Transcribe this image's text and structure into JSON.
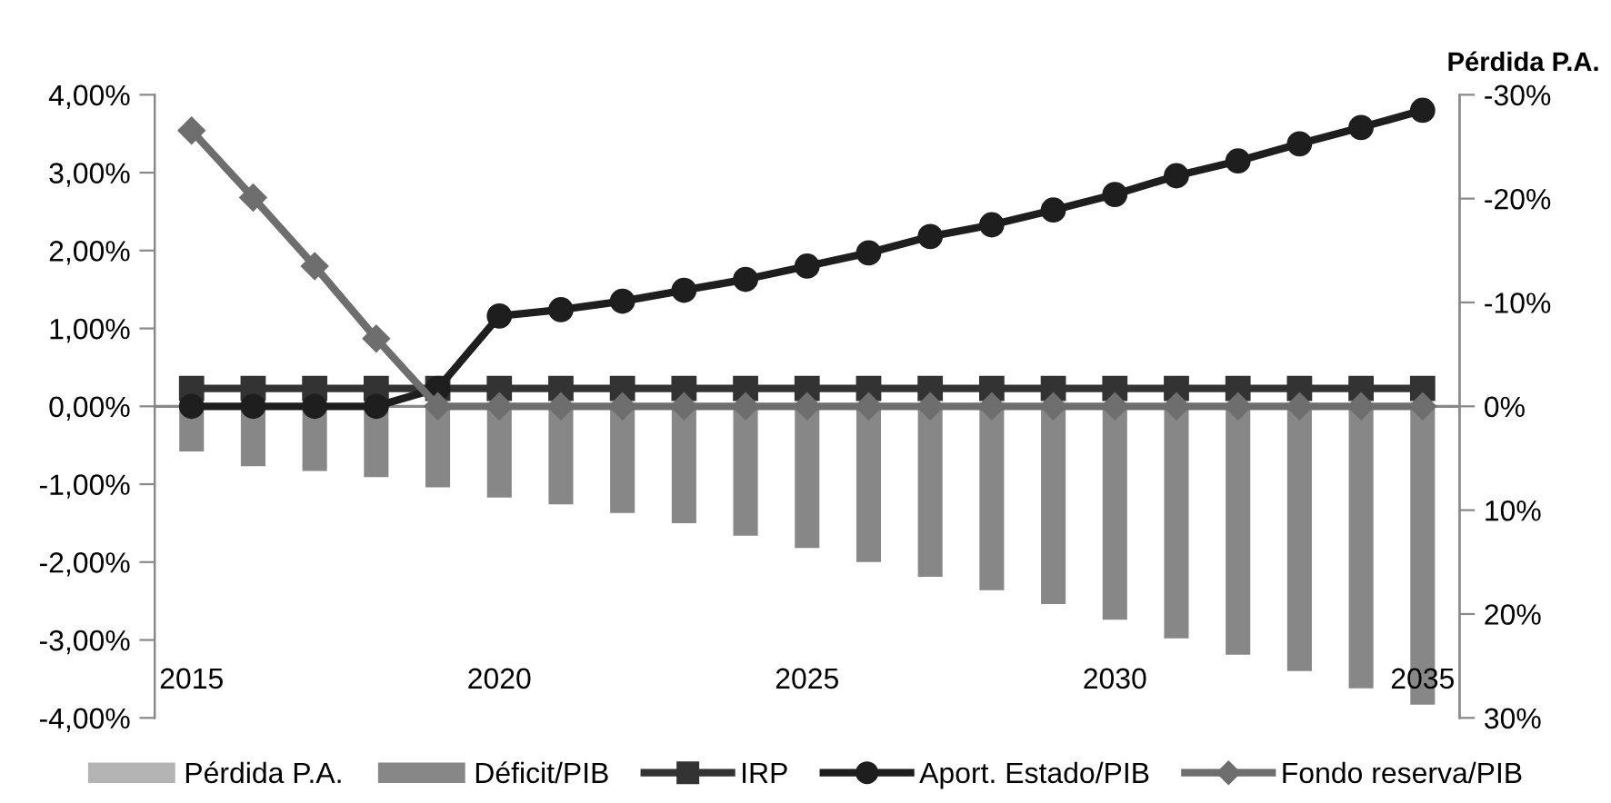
{
  "chart_data": {
    "type": "bar",
    "y2label": "Pérdida P.A.",
    "categories": [
      "2015",
      null,
      null,
      null,
      null,
      "2020",
      null,
      null,
      null,
      null,
      "2025",
      null,
      null,
      null,
      null,
      "2030",
      null,
      null,
      null,
      null,
      "2035"
    ],
    "series": [
      {
        "name": "Pérdida P.A.",
        "color": "#b4b4b4",
        "values": [
          null,
          null,
          null,
          null,
          null,
          null,
          null,
          null,
          null,
          null,
          null,
          null,
          null,
          null,
          null,
          null,
          null,
          null,
          null,
          null,
          null
        ]
      },
      {
        "name": "Déficit/PIB",
        "color": "#878787",
        "values": [
          -0.58,
          -0.77,
          -0.83,
          -0.91,
          -1.04,
          -1.17,
          -1.26,
          -1.37,
          -1.5,
          -1.66,
          -1.82,
          -2.0,
          -2.19,
          -2.36,
          -2.54,
          -2.74,
          -2.98,
          -3.19,
          -3.4,
          -3.62,
          -3.83
        ]
      },
      {
        "name": "IRP",
        "type": "line",
        "marker": "square",
        "color": "#333333",
        "values": [
          0.23,
          0.23,
          0.23,
          0.23,
          0.23,
          0.23,
          0.23,
          0.23,
          0.23,
          0.23,
          0.23,
          0.23,
          0.23,
          0.23,
          0.23,
          0.23,
          0.23,
          0.23,
          0.23,
          0.23,
          0.23
        ]
      },
      {
        "name": "Aport. Estado/PIB",
        "type": "line",
        "marker": "circle",
        "color": "#1e1e1e",
        "values": [
          0,
          0,
          0,
          0,
          0.23,
          1.16,
          1.24,
          1.35,
          1.49,
          1.63,
          1.8,
          1.97,
          2.18,
          2.33,
          2.52,
          2.72,
          2.96,
          3.15,
          3.37,
          3.58,
          3.8
        ]
      },
      {
        "name": "Fondo reserva/PIB",
        "type": "line",
        "marker": "diamond",
        "color": "#6e6e6e",
        "values": [
          3.54,
          2.68,
          1.8,
          0.87,
          0,
          0,
          0,
          0,
          0,
          0,
          0,
          0,
          0,
          0,
          0,
          0,
          0,
          0,
          0,
          0,
          0
        ]
      }
    ],
    "ylim": [
      -4,
      4
    ],
    "yticks": [
      {
        "value": -4,
        "label": "-4,00%"
      },
      {
        "value": -3,
        "label": "-3,00%"
      },
      {
        "value": -2,
        "label": "-2,00%"
      },
      {
        "value": -1,
        "label": "-1,00%"
      },
      {
        "value": 0,
        "label": "0,00%"
      },
      {
        "value": 1,
        "label": "1,00%"
      },
      {
        "value": 2,
        "label": "2,00%"
      },
      {
        "value": 3,
        "label": "3,00%"
      },
      {
        "value": 4,
        "label": "4,00%"
      }
    ],
    "y2lim": [
      30,
      -30
    ],
    "y2ticks": [
      {
        "value": -30,
        "label": "-30%"
      },
      {
        "value": -20,
        "label": "-20%"
      },
      {
        "value": -10,
        "label": "-10%"
      },
      {
        "value": 0,
        "label": "0%"
      },
      {
        "value": 10,
        "label": "10%"
      },
      {
        "value": 20,
        "label": "20%"
      },
      {
        "value": 30,
        "label": "30%"
      }
    ],
    "grid": false,
    "legend": "bottom"
  }
}
